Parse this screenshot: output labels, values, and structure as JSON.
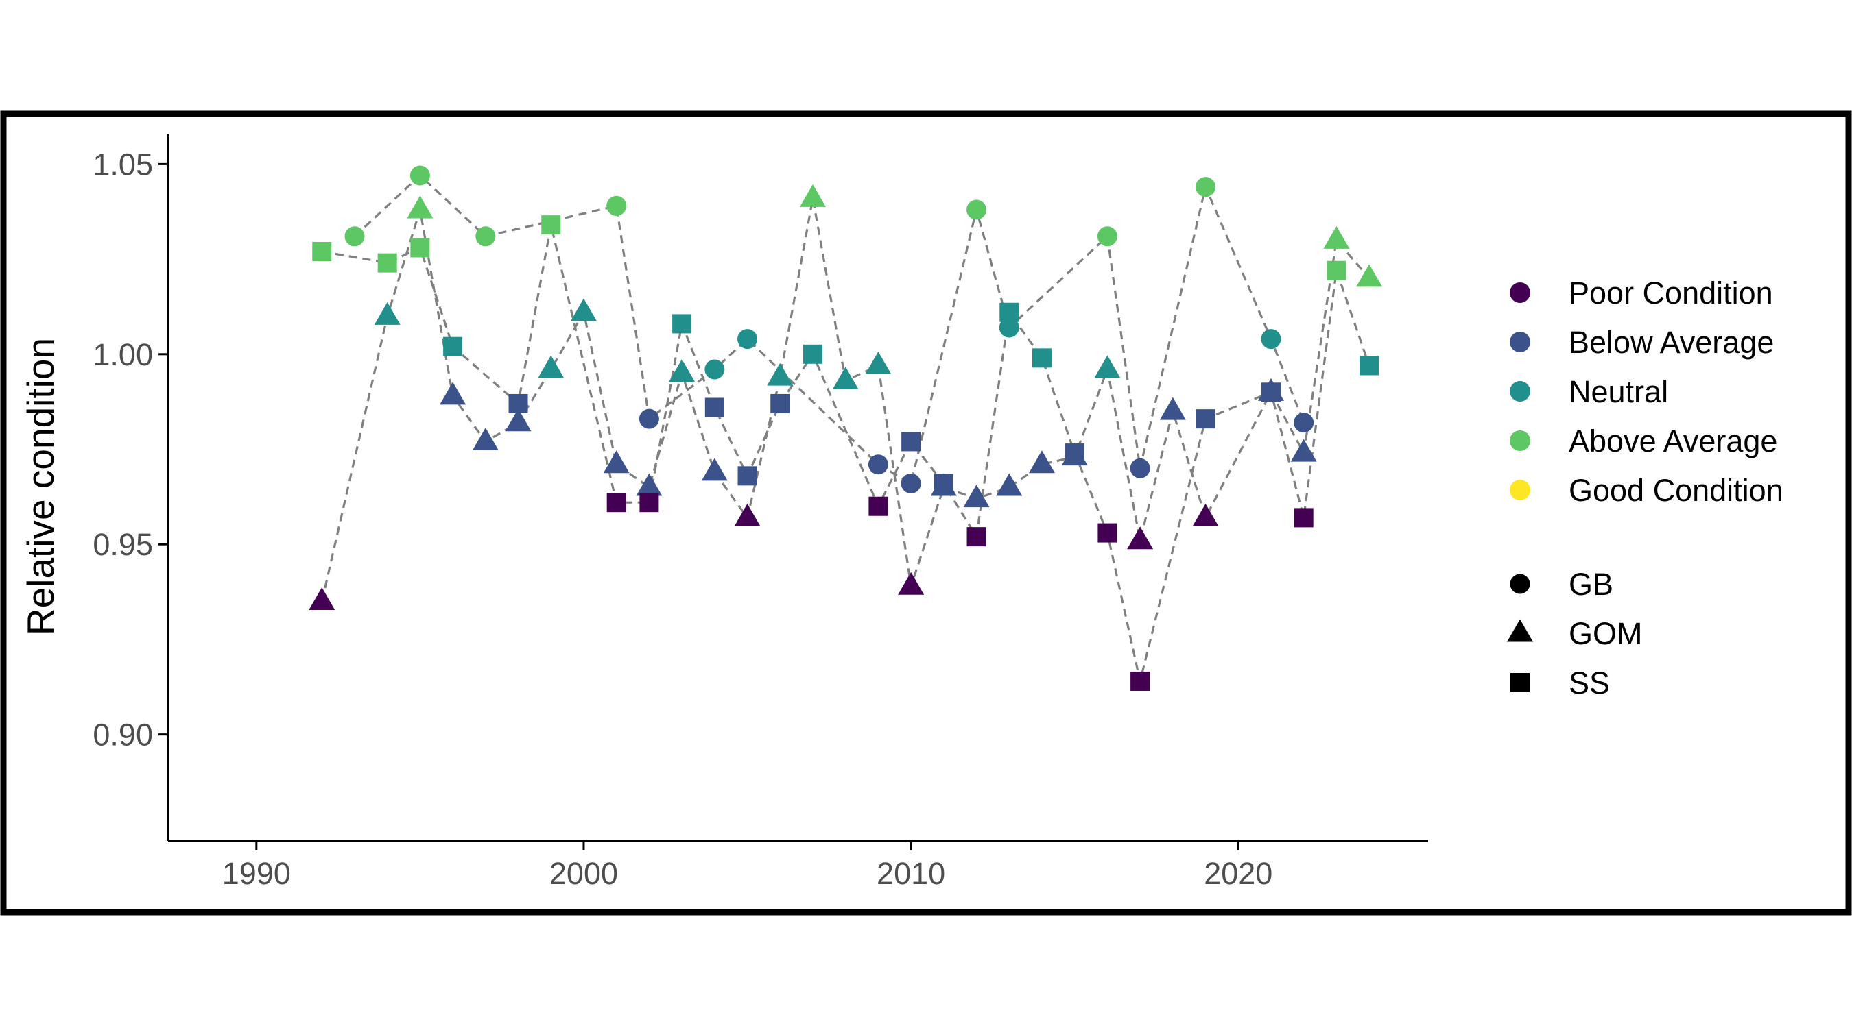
{
  "chart_data": {
    "type": "scatter",
    "title": "",
    "xlabel": "",
    "ylabel": "Relative condition",
    "xlim": [
      1987.3,
      2025.8
    ],
    "ylim": [
      0.872,
      1.058
    ],
    "x_ticks": [
      1990,
      2000,
      2010,
      2020
    ],
    "x_tick_labels": [
      "1990",
      "2000",
      "2010",
      "2020"
    ],
    "y_ticks": [
      0.9,
      0.95,
      1.0,
      1.05
    ],
    "y_tick_labels": [
      "0.90",
      "0.95",
      "1.00",
      "1.05"
    ],
    "grid": false,
    "legend_position": "right",
    "condition_legend": [
      {
        "label": "Poor Condition",
        "color": "#440154"
      },
      {
        "label": "Below Average",
        "color": "#3B528B"
      },
      {
        "label": "Neutral",
        "color": "#21908C"
      },
      {
        "label": "Above Average",
        "color": "#5DC863"
      },
      {
        "label": "Good Condition",
        "color": "#FDE725"
      }
    ],
    "shape_legend": [
      {
        "label": "GB",
        "shape": "circle"
      },
      {
        "label": "GOM",
        "shape": "triangle"
      },
      {
        "label": "SS",
        "shape": "square"
      }
    ],
    "line_style": {
      "color": "#808080",
      "dash": "dashed"
    },
    "series": [
      {
        "name": "GB",
        "shape": "circle",
        "points": [
          {
            "x": 1993,
            "y": 1.031,
            "c": "Above Average"
          },
          {
            "x": 1995,
            "y": 1.047,
            "c": "Above Average"
          },
          {
            "x": 1997,
            "y": 1.031,
            "c": "Above Average"
          },
          {
            "x": 2001,
            "y": 1.039,
            "c": "Above Average"
          },
          {
            "x": 2002,
            "y": 0.983,
            "c": "Below Average"
          },
          {
            "x": 2004,
            "y": 0.996,
            "c": "Neutral"
          },
          {
            "x": 2005,
            "y": 1.004,
            "c": "Neutral"
          },
          {
            "x": 2009,
            "y": 0.971,
            "c": "Below Average"
          },
          {
            "x": 2010,
            "y": 0.966,
            "c": "Below Average"
          },
          {
            "x": 2012,
            "y": 1.038,
            "c": "Above Average"
          },
          {
            "x": 2013,
            "y": 1.007,
            "c": "Neutral"
          },
          {
            "x": 2016,
            "y": 1.031,
            "c": "Above Average"
          },
          {
            "x": 2017,
            "y": 0.97,
            "c": "Below Average"
          },
          {
            "x": 2019,
            "y": 1.044,
            "c": "Above Average"
          },
          {
            "x": 2021,
            "y": 1.004,
            "c": "Neutral"
          },
          {
            "x": 2022,
            "y": 0.982,
            "c": "Below Average"
          }
        ]
      },
      {
        "name": "GOM",
        "shape": "triangle",
        "points": [
          {
            "x": 1992,
            "y": 0.935,
            "c": "Poor Condition"
          },
          {
            "x": 1994,
            "y": 1.01,
            "c": "Neutral"
          },
          {
            "x": 1995,
            "y": 1.038,
            "c": "Above Average"
          },
          {
            "x": 1996,
            "y": 0.989,
            "c": "Below Average"
          },
          {
            "x": 1997,
            "y": 0.977,
            "c": "Below Average"
          },
          {
            "x": 1998,
            "y": 0.982,
            "c": "Below Average"
          },
          {
            "x": 1999,
            "y": 0.996,
            "c": "Neutral"
          },
          {
            "x": 2000,
            "y": 1.011,
            "c": "Neutral"
          },
          {
            "x": 2001,
            "y": 0.971,
            "c": "Below Average"
          },
          {
            "x": 2002,
            "y": 0.965,
            "c": "Below Average"
          },
          {
            "x": 2003,
            "y": 0.995,
            "c": "Neutral"
          },
          {
            "x": 2004,
            "y": 0.969,
            "c": "Below Average"
          },
          {
            "x": 2005,
            "y": 0.957,
            "c": "Poor Condition"
          },
          {
            "x": 2006,
            "y": 0.994,
            "c": "Neutral"
          },
          {
            "x": 2007,
            "y": 1.041,
            "c": "Above Average"
          },
          {
            "x": 2008,
            "y": 0.993,
            "c": "Neutral"
          },
          {
            "x": 2009,
            "y": 0.997,
            "c": "Neutral"
          },
          {
            "x": 2010,
            "y": 0.939,
            "c": "Poor Condition"
          },
          {
            "x": 2011,
            "y": 0.965,
            "c": "Below Average"
          },
          {
            "x": 2012,
            "y": 0.962,
            "c": "Below Average"
          },
          {
            "x": 2013,
            "y": 0.965,
            "c": "Below Average"
          },
          {
            "x": 2014,
            "y": 0.971,
            "c": "Below Average"
          },
          {
            "x": 2015,
            "y": 0.973,
            "c": "Below Average"
          },
          {
            "x": 2016,
            "y": 0.996,
            "c": "Neutral"
          },
          {
            "x": 2017,
            "y": 0.951,
            "c": "Poor Condition"
          },
          {
            "x": 2018,
            "y": 0.985,
            "c": "Below Average"
          },
          {
            "x": 2019,
            "y": 0.957,
            "c": "Poor Condition"
          },
          {
            "x": 2021,
            "y": 0.99,
            "c": "Below Average"
          },
          {
            "x": 2022,
            "y": 0.974,
            "c": "Below Average"
          },
          {
            "x": 2023,
            "y": 1.03,
            "c": "Above Average"
          },
          {
            "x": 2024,
            "y": 1.02,
            "c": "Above Average"
          }
        ]
      },
      {
        "name": "SS",
        "shape": "square",
        "points": [
          {
            "x": 1992,
            "y": 1.027,
            "c": "Above Average"
          },
          {
            "x": 1994,
            "y": 1.024,
            "c": "Above Average"
          },
          {
            "x": 1995,
            "y": 1.028,
            "c": "Above Average"
          },
          {
            "x": 1996,
            "y": 1.002,
            "c": "Neutral"
          },
          {
            "x": 1998,
            "y": 0.987,
            "c": "Below Average"
          },
          {
            "x": 1999,
            "y": 1.034,
            "c": "Above Average"
          },
          {
            "x": 2001,
            "y": 0.961,
            "c": "Poor Condition"
          },
          {
            "x": 2002,
            "y": 0.961,
            "c": "Poor Condition"
          },
          {
            "x": 2003,
            "y": 1.008,
            "c": "Neutral"
          },
          {
            "x": 2004,
            "y": 0.986,
            "c": "Below Average"
          },
          {
            "x": 2005,
            "y": 0.968,
            "c": "Below Average"
          },
          {
            "x": 2006,
            "y": 0.987,
            "c": "Below Average"
          },
          {
            "x": 2007,
            "y": 1.0,
            "c": "Neutral"
          },
          {
            "x": 2009,
            "y": 0.96,
            "c": "Poor Condition"
          },
          {
            "x": 2010,
            "y": 0.977,
            "c": "Below Average"
          },
          {
            "x": 2011,
            "y": 0.966,
            "c": "Below Average"
          },
          {
            "x": 2012,
            "y": 0.952,
            "c": "Poor Condition"
          },
          {
            "x": 2013,
            "y": 1.011,
            "c": "Neutral"
          },
          {
            "x": 2014,
            "y": 0.999,
            "c": "Neutral"
          },
          {
            "x": 2015,
            "y": 0.974,
            "c": "Below Average"
          },
          {
            "x": 2016,
            "y": 0.953,
            "c": "Poor Condition"
          },
          {
            "x": 2017,
            "y": 0.914,
            "c": "Poor Condition"
          },
          {
            "x": 2019,
            "y": 0.983,
            "c": "Below Average"
          },
          {
            "x": 2021,
            "y": 0.99,
            "c": "Below Average"
          },
          {
            "x": 2022,
            "y": 0.957,
            "c": "Poor Condition"
          },
          {
            "x": 2023,
            "y": 1.022,
            "c": "Above Average"
          },
          {
            "x": 2024,
            "y": 0.997,
            "c": "Neutral"
          }
        ]
      }
    ]
  }
}
